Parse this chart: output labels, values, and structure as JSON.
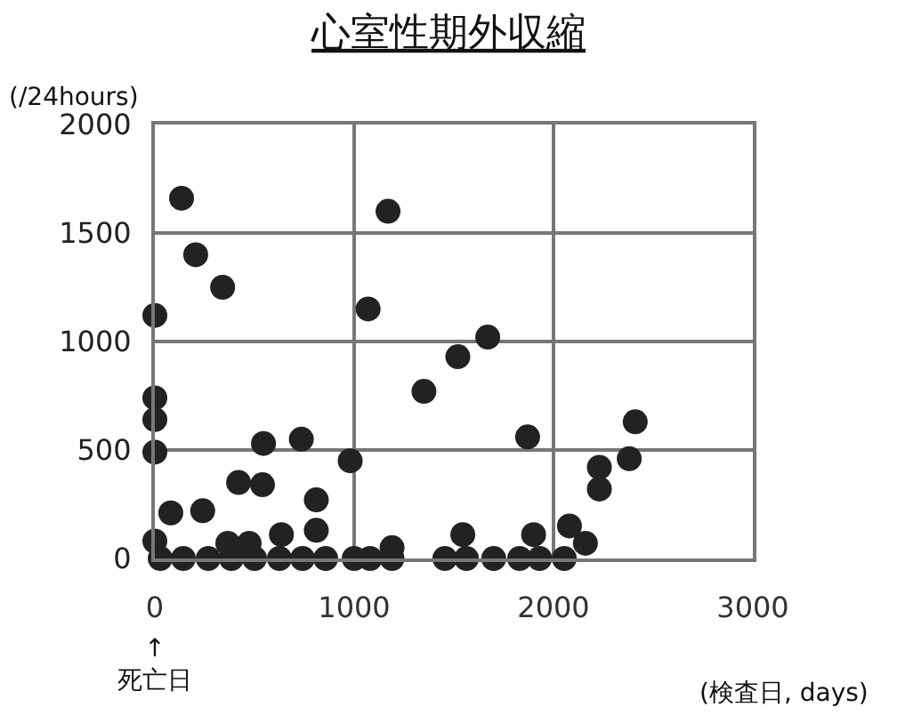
{
  "chart_data": {
    "type": "scatter",
    "title": "心室性期外収縮",
    "ylabel": "(/24hours)",
    "xlabel": "(検査日, days)",
    "annotations": [
      "↑\n死亡日"
    ],
    "x": [
      134,
      205,
      340,
      0,
      1170,
      1070,
      1350,
      1520,
      1670,
      0,
      0,
      0,
      545,
      735,
      980,
      1870,
      2230,
      2230,
      2380,
      2410,
      420,
      540,
      810,
      80,
      240,
      635,
      810,
      0,
      366,
      473,
      1545,
      1900,
      2080,
      2160,
      1190,
      27,
      143,
      268,
      384,
      500,
      625,
      741,
      857,
      1000,
      1080,
      1190,
      1455,
      1563,
      1700,
      1830,
      1930,
      2054
    ],
    "values": [
      1660,
      1400,
      1250,
      1120,
      1600,
      1150,
      770,
      930,
      1020,
      740,
      640,
      490,
      530,
      550,
      450,
      560,
      420,
      320,
      460,
      630,
      350,
      340,
      270,
      210,
      220,
      110,
      130,
      80,
      70,
      70,
      110,
      110,
      150,
      70,
      50,
      0,
      0,
      0,
      0,
      0,
      0,
      0,
      0,
      0,
      0,
      0,
      0,
      0,
      0,
      0,
      0,
      0
    ],
    "color": "#222222",
    "marker": "circle",
    "xlim": [
      0,
      3000
    ],
    "xticks": [
      0,
      1000,
      2000,
      3000
    ],
    "ylim": [
      0,
      2000
    ],
    "yticks": [
      0,
      500,
      1000,
      1500,
      2000
    ],
    "grid": true
  }
}
